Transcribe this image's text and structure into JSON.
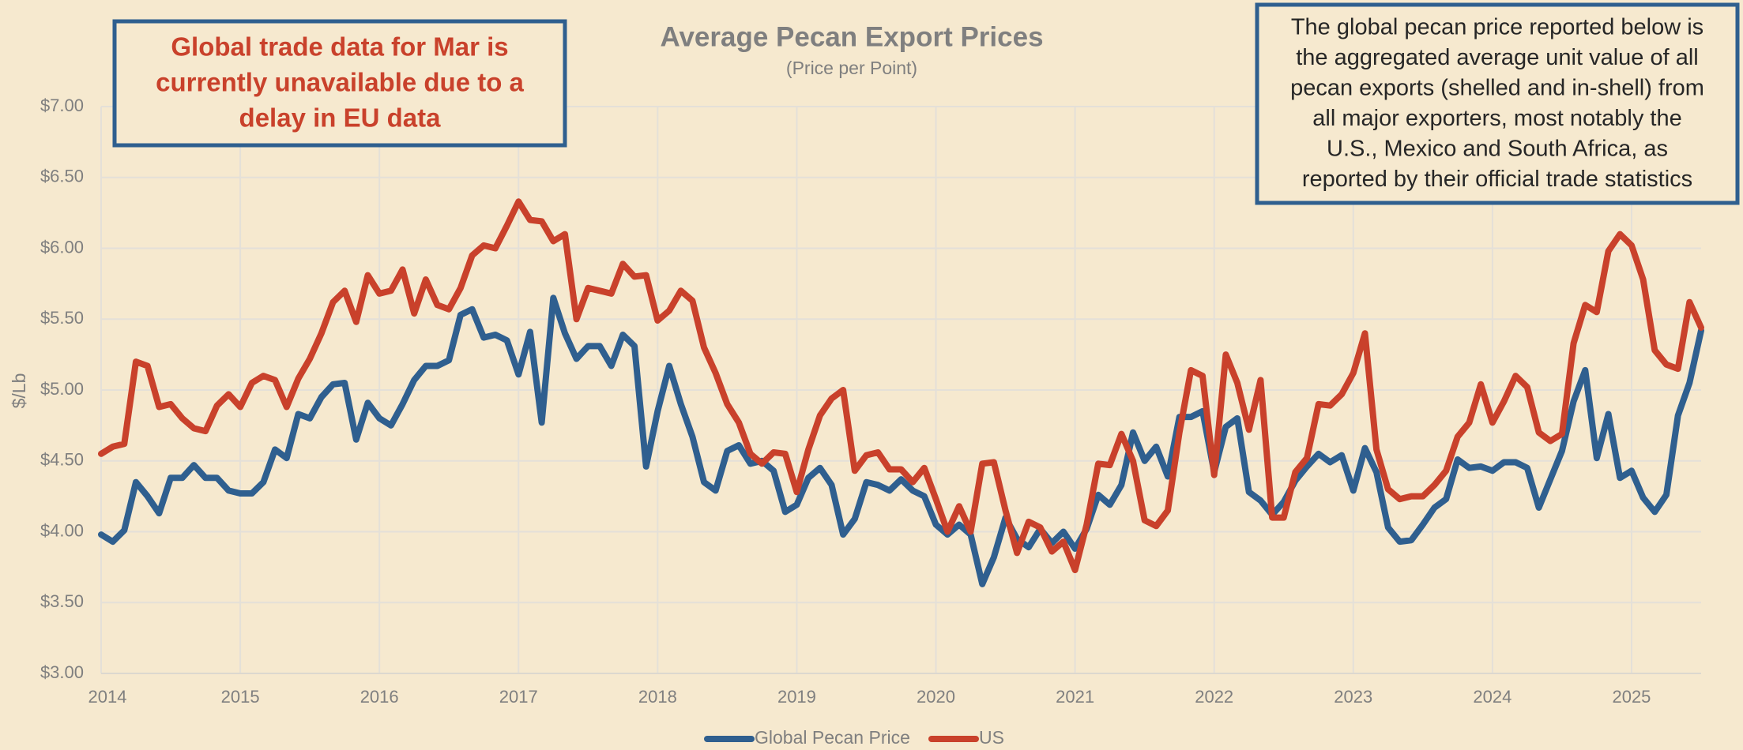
{
  "chart_data": {
    "type": "line",
    "title": "Average Pecan Export Prices",
    "subtitle": "(Price per Point)",
    "y_label": "$/Lb",
    "annotations": [
      [
        "Global trade data for Mar is",
        "currently unavailable due to a",
        "delay in EU data"
      ],
      [
        "The global pecan price reported below is",
        "the aggregated average unit value of all",
        "pecan exports (shelled and in-shell) from",
        "all major exporters, most notably the",
        "U.S., Mexico and South Africa, as",
        "reported by their official trade statistics"
      ]
    ],
    "categories": [
      "2014",
      null,
      null,
      null,
      null,
      null,
      null,
      null,
      null,
      null,
      null,
      null,
      "2015",
      null,
      null,
      null,
      null,
      null,
      null,
      null,
      null,
      null,
      null,
      null,
      "2016",
      null,
      null,
      null,
      null,
      null,
      null,
      null,
      null,
      null,
      null,
      null,
      "2017",
      null,
      null,
      null,
      null,
      null,
      null,
      null,
      null,
      null,
      null,
      null,
      "2018",
      null,
      null,
      null,
      null,
      null,
      null,
      null,
      null,
      null,
      null,
      null,
      "2019",
      null,
      null,
      null,
      null,
      null,
      null,
      null,
      null,
      null,
      null,
      null,
      "2020",
      null,
      null,
      null,
      null,
      null,
      null,
      null,
      null,
      null,
      null,
      null,
      "2021",
      null,
      null,
      null,
      null,
      null,
      null,
      null,
      null,
      null,
      null,
      null,
      "2022",
      null,
      null,
      null,
      null,
      null,
      null,
      null,
      null,
      null,
      null,
      null,
      "2023",
      null,
      null,
      null,
      null,
      null,
      null,
      null,
      null,
      null,
      null,
      null,
      "2024",
      null,
      null,
      null,
      null,
      null,
      null,
      null,
      null,
      null,
      null,
      null,
      "2025",
      null,
      null,
      null,
      null,
      null,
      null
    ],
    "series": [
      {
        "name": "Global Pecan Price",
        "color": "#2f5f8f",
        "values": [
          3.98,
          3.93,
          4.01,
          4.35,
          4.25,
          4.13,
          4.38,
          4.38,
          4.47,
          4.38,
          4.38,
          4.29,
          4.27,
          4.27,
          4.35,
          4.58,
          4.52,
          4.83,
          4.8,
          4.95,
          5.04,
          5.05,
          4.65,
          4.91,
          4.8,
          4.75,
          4.9,
          5.07,
          5.17,
          5.17,
          5.21,
          5.53,
          5.57,
          5.37,
          5.39,
          5.35,
          5.11,
          5.41,
          4.77,
          5.65,
          5.4,
          5.22,
          5.31,
          5.31,
          5.17,
          5.39,
          5.31,
          4.46,
          4.85,
          5.17,
          4.9,
          4.67,
          4.35,
          4.29,
          4.57,
          4.61,
          4.48,
          4.5,
          4.43,
          4.14,
          4.19,
          4.38,
          4.45,
          4.33,
          3.98,
          4.09,
          4.35,
          4.33,
          4.29,
          4.37,
          4.29,
          4.25,
          4.05,
          3.98,
          4.05,
          3.98,
          3.63,
          3.82,
          4.1,
          3.95,
          3.89,
          4.02,
          3.92,
          4.0,
          3.88,
          4.02,
          4.26,
          4.19,
          4.33,
          4.7,
          4.5,
          4.6,
          4.39,
          4.81,
          4.81,
          4.85,
          4.42,
          4.74,
          4.8,
          4.28,
          4.22,
          4.12,
          4.21,
          4.36,
          4.46,
          4.55,
          4.49,
          4.54,
          4.29,
          4.59,
          4.42,
          4.03,
          3.93,
          3.94,
          4.05,
          4.17,
          4.23,
          4.51,
          4.45,
          4.46,
          4.43,
          4.49,
          4.49,
          4.45,
          4.17,
          4.37,
          4.57,
          4.92,
          5.14,
          4.52,
          4.83,
          4.38,
          4.43,
          4.24,
          4.14,
          4.26,
          4.82,
          5.05,
          5.42
        ]
      },
      {
        "name": "US",
        "color": "#c9412b",
        "values": [
          4.55,
          4.6,
          4.62,
          5.2,
          5.17,
          4.88,
          4.9,
          4.8,
          4.73,
          4.71,
          4.89,
          4.97,
          4.88,
          5.05,
          5.1,
          5.07,
          4.88,
          5.08,
          5.22,
          5.4,
          5.62,
          5.7,
          5.48,
          5.81,
          5.68,
          5.7,
          5.85,
          5.54,
          5.78,
          5.6,
          5.57,
          5.72,
          5.95,
          6.02,
          6.0,
          6.16,
          6.33,
          6.2,
          6.19,
          6.05,
          6.1,
          5.5,
          5.72,
          5.7,
          5.68,
          5.89,
          5.8,
          5.81,
          5.49,
          5.56,
          5.7,
          5.63,
          5.3,
          5.12,
          4.9,
          4.77,
          4.55,
          4.48,
          4.56,
          4.55,
          4.28,
          4.58,
          4.82,
          4.94,
          5.0,
          4.43,
          4.54,
          4.56,
          4.44,
          4.44,
          4.35,
          4.45,
          4.23,
          4.0,
          4.18,
          4.0,
          4.48,
          4.49,
          4.15,
          3.85,
          4.07,
          4.03,
          3.86,
          3.93,
          3.73,
          4.05,
          4.48,
          4.47,
          4.69,
          4.5,
          4.08,
          4.04,
          4.15,
          4.7,
          5.14,
          5.1,
          4.4,
          5.25,
          5.05,
          4.72,
          5.07,
          4.1,
          4.1,
          4.42,
          4.52,
          4.9,
          4.89,
          4.97,
          5.12,
          5.4,
          4.58,
          4.3,
          4.23,
          4.25,
          4.25,
          4.33,
          4.43,
          4.67,
          4.77,
          5.04,
          4.77,
          4.92,
          5.1,
          5.02,
          4.7,
          4.64,
          4.69,
          5.33,
          5.6,
          5.55,
          5.98,
          6.1,
          6.02,
          5.78,
          5.28,
          5.18,
          5.15,
          5.62,
          5.44
        ]
      }
    ],
    "ylim": [
      3,
      7
    ],
    "yticks": [
      {
        "value": 3,
        "label": "$3.00"
      },
      {
        "value": 3.5,
        "label": "$3.50"
      },
      {
        "value": 4,
        "label": "$4.00"
      },
      {
        "value": 4.5,
        "label": "$4.50"
      },
      {
        "value": 5,
        "label": "$5.00"
      },
      {
        "value": 5.5,
        "label": "$5.50"
      },
      {
        "value": 6,
        "label": "$6.00"
      },
      {
        "value": 6.5,
        "label": "$6.50"
      },
      {
        "value": 7,
        "label": "$7.00"
      }
    ],
    "grid": true,
    "legend": "bottom"
  }
}
